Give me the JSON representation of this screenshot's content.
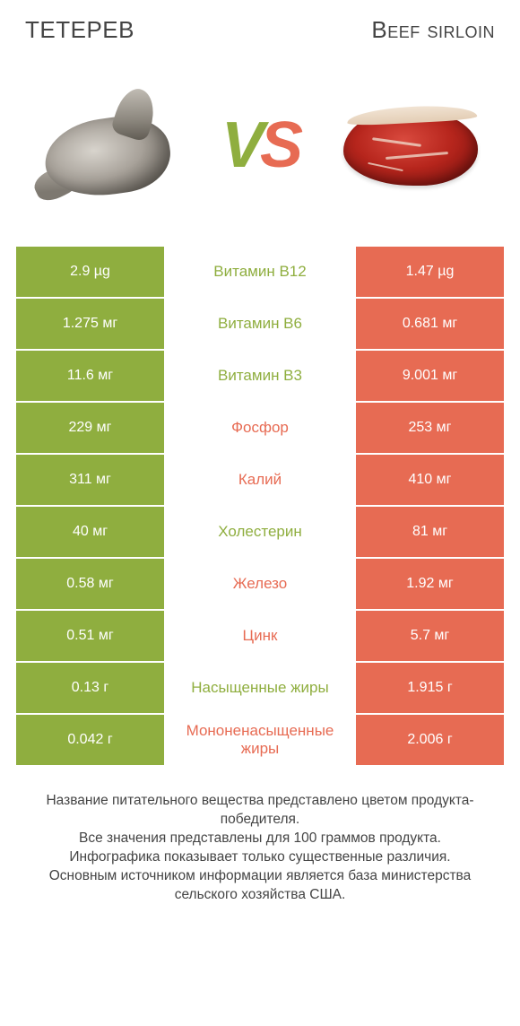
{
  "colors": {
    "green": "#8fae3f",
    "red": "#e76b53",
    "vs_v": "#8fae3f",
    "vs_s": "#e76b53",
    "mid_text_default": "#666"
  },
  "header": {
    "left_title": "ТЕТЕРЕВ",
    "right_title": "Beef sirloin"
  },
  "vs": {
    "v": "V",
    "s": "S"
  },
  "rows": [
    {
      "left": "2.9 µg",
      "mid": "Витамин B12",
      "right": "1.47 µg",
      "winner": "left"
    },
    {
      "left": "1.275 мг",
      "mid": "Витамин B6",
      "right": "0.681 мг",
      "winner": "left"
    },
    {
      "left": "11.6 мг",
      "mid": "Витамин B3",
      "right": "9.001 мг",
      "winner": "left"
    },
    {
      "left": "229 мг",
      "mid": "Фосфор",
      "right": "253 мг",
      "winner": "right"
    },
    {
      "left": "311 мг",
      "mid": "Калий",
      "right": "410 мг",
      "winner": "right"
    },
    {
      "left": "40 мг",
      "mid": "Холестерин",
      "right": "81 мг",
      "winner": "left"
    },
    {
      "left": "0.58 мг",
      "mid": "Железо",
      "right": "1.92 мг",
      "winner": "right"
    },
    {
      "left": "0.51 мг",
      "mid": "Цинк",
      "right": "5.7 мг",
      "winner": "right"
    },
    {
      "left": "0.13 г",
      "mid": "Насыщенные жиры",
      "right": "1.915 г",
      "winner": "left"
    },
    {
      "left": "0.042 г",
      "mid": "Мононенасыщенные жиры",
      "right": "2.006 г",
      "winner": "right"
    }
  ],
  "footer": {
    "line1": "Название питательного вещества представлено цветом продукта-победителя.",
    "line2": "Все значения представлены для 100 граммов продукта.",
    "line3": "Инфографика показывает только существенные различия.",
    "line4": "Основным источником информации является база министерства сельского хозяйства США."
  }
}
